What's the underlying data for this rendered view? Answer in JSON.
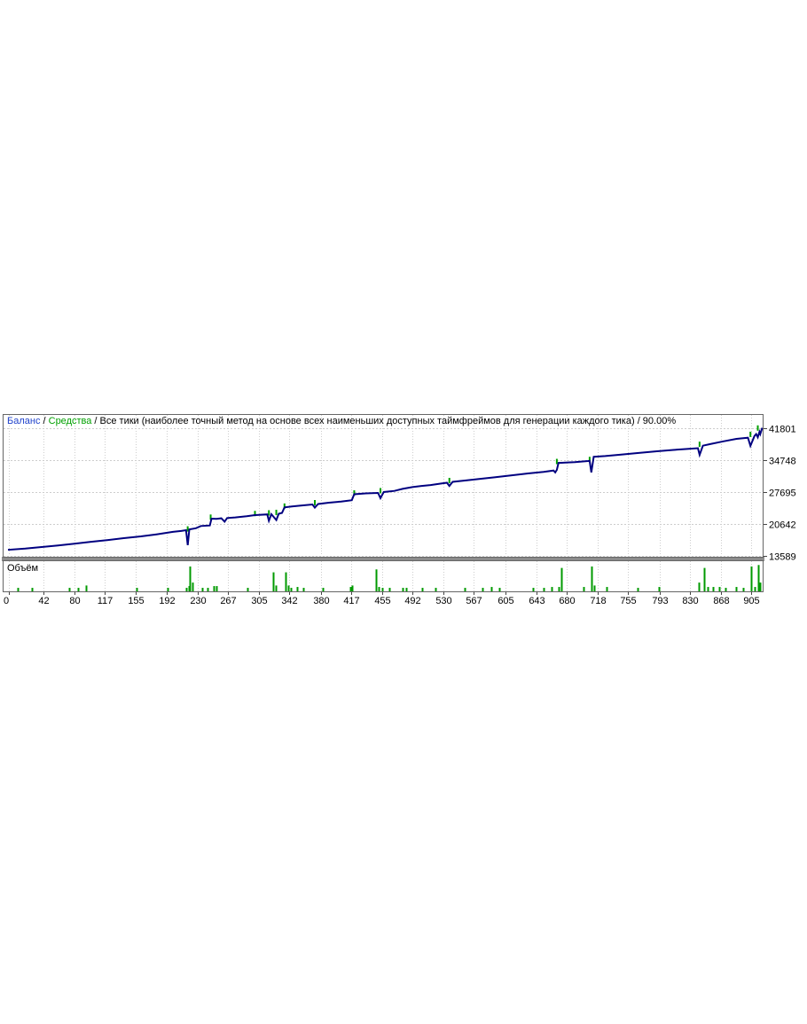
{
  "header": {
    "balance_label": "Баланс",
    "sep1": " / ",
    "equity_label": "Средства",
    "sep2": " / ",
    "rest": "Все тики (наиболее точный метод на основе всех наименьших доступных таймфреймов для генерации каждого тика) / 90.00%"
  },
  "volume_pane": {
    "label": "Объём"
  },
  "colors": {
    "balance_line": "#000080",
    "equity_mark": "#00a000",
    "volume_bar": "#009a00",
    "header_balance": "#2244cc",
    "header_equity": "#00a000",
    "grid": "#cdcdcd",
    "border": "#666666",
    "separator": "#8c8c8c",
    "background": "#ffffff",
    "text": "#000000"
  },
  "chart_data": {
    "type": "line",
    "title": "Баланс / Средства / Все тики (наиболее точный метод на основе всех наименьших доступных таймфреймов для генерации каждого тика) / 90.00%",
    "modeling_quality": "90.00%",
    "xlabel": "",
    "ylabel": "",
    "y_axis_side": "right",
    "grid": true,
    "legend_position": "top-left-inline",
    "x_range": [
      0,
      920
    ],
    "y_range": [
      13589,
      41801
    ],
    "y_ticks": [
      41801,
      34748,
      27695,
      20642,
      13589
    ],
    "x_ticks": [
      0,
      42,
      80,
      117,
      155,
      192,
      230,
      267,
      305,
      342,
      380,
      417,
      455,
      492,
      530,
      567,
      605,
      643,
      680,
      718,
      755,
      793,
      830,
      868,
      905
    ],
    "series": [
      {
        "name": "Баланс",
        "color": "#000080",
        "points": [
          [
            0,
            14950
          ],
          [
            20,
            15200
          ],
          [
            40,
            15550
          ],
          [
            60,
            15900
          ],
          [
            80,
            16300
          ],
          [
            100,
            16700
          ],
          [
            121,
            17100
          ],
          [
            140,
            17500
          ],
          [
            161,
            17900
          ],
          [
            180,
            18350
          ],
          [
            200,
            18900
          ],
          [
            210,
            19100
          ],
          [
            216,
            19270
          ],
          [
            218,
            15950
          ],
          [
            220,
            19450
          ],
          [
            228,
            19700
          ],
          [
            234,
            20200
          ],
          [
            245,
            20300
          ],
          [
            247,
            21820
          ],
          [
            253,
            21750
          ],
          [
            259,
            21900
          ],
          [
            263,
            21150
          ],
          [
            266,
            21950
          ],
          [
            276,
            22100
          ],
          [
            290,
            22350
          ],
          [
            300,
            22600
          ],
          [
            315,
            22750
          ],
          [
            317,
            21350
          ],
          [
            320,
            22800
          ],
          [
            326,
            21500
          ],
          [
            329,
            22900
          ],
          [
            333,
            23100
          ],
          [
            336,
            24300
          ],
          [
            345,
            24500
          ],
          [
            356,
            24700
          ],
          [
            370,
            24950
          ],
          [
            373,
            24250
          ],
          [
            377,
            25050
          ],
          [
            390,
            25350
          ],
          [
            405,
            25600
          ],
          [
            418,
            25900
          ],
          [
            421,
            27200
          ],
          [
            435,
            27400
          ],
          [
            450,
            27500
          ],
          [
            453,
            26350
          ],
          [
            457,
            27700
          ],
          [
            470,
            27950
          ],
          [
            480,
            28400
          ],
          [
            492,
            28800
          ],
          [
            503,
            29050
          ],
          [
            514,
            29250
          ],
          [
            526,
            29550
          ],
          [
            534,
            29750
          ],
          [
            537,
            29050
          ],
          [
            541,
            29950
          ],
          [
            556,
            30250
          ],
          [
            572,
            30550
          ],
          [
            592,
            30950
          ],
          [
            612,
            31350
          ],
          [
            633,
            31800
          ],
          [
            652,
            32150
          ],
          [
            664,
            32450
          ],
          [
            666,
            32050
          ],
          [
            668,
            32600
          ],
          [
            670,
            34150
          ],
          [
            690,
            34300
          ],
          [
            706,
            34550
          ],
          [
            708,
            34600
          ],
          [
            710,
            32050
          ],
          [
            713,
            35500
          ],
          [
            727,
            35650
          ],
          [
            745,
            35950
          ],
          [
            765,
            36300
          ],
          [
            790,
            36700
          ],
          [
            810,
            37000
          ],
          [
            825,
            37200
          ],
          [
            840,
            37400
          ],
          [
            842,
            35900
          ],
          [
            846,
            37950
          ],
          [
            855,
            38300
          ],
          [
            871,
            38900
          ],
          [
            887,
            39450
          ],
          [
            901,
            39700
          ],
          [
            904,
            37900
          ],
          [
            909,
            40100
          ],
          [
            911,
            40500
          ],
          [
            913,
            39800
          ],
          [
            915,
            41000
          ],
          [
            916,
            40500
          ],
          [
            918,
            41700
          ]
        ]
      }
    ],
    "equity_marks": {
      "name": "Средства",
      "color": "#00a000",
      "points": [
        [
          218,
          19350
        ],
        [
          246,
          21950
        ],
        [
          300,
          22750
        ],
        [
          317,
          22900
        ],
        [
          326,
          23000
        ],
        [
          336,
          24400
        ],
        [
          373,
          25150
        ],
        [
          421,
          27300
        ],
        [
          453,
          27800
        ],
        [
          537,
          30050
        ],
        [
          668,
          34250
        ],
        [
          708,
          34700
        ],
        [
          842,
          38050
        ],
        [
          904,
          40250
        ],
        [
          913,
          41650
        ]
      ]
    },
    "volume": {
      "name": "Объём",
      "color": "#009a00",
      "max_height_fraction": 1,
      "bars": [
        [
          11,
          0.12
        ],
        [
          28,
          0.12
        ],
        [
          74,
          0.12
        ],
        [
          84,
          0.12
        ],
        [
          94,
          0.2
        ],
        [
          156,
          0.12
        ],
        [
          193,
          0.12
        ],
        [
          216,
          0.12
        ],
        [
          219,
          0.18
        ],
        [
          221,
          0.85
        ],
        [
          224,
          0.3
        ],
        [
          236,
          0.12
        ],
        [
          242,
          0.12
        ],
        [
          250,
          0.18
        ],
        [
          253,
          0.18
        ],
        [
          291,
          0.12
        ],
        [
          322,
          0.65
        ],
        [
          325,
          0.2
        ],
        [
          337,
          0.65
        ],
        [
          340,
          0.2
        ],
        [
          344,
          0.12
        ],
        [
          351,
          0.15
        ],
        [
          359,
          0.12
        ],
        [
          383,
          0.12
        ],
        [
          416,
          0.15
        ],
        [
          418,
          0.2
        ],
        [
          448,
          0.75
        ],
        [
          451,
          0.15
        ],
        [
          455,
          0.12
        ],
        [
          464,
          0.12
        ],
        [
          480,
          0.12
        ],
        [
          484,
          0.12
        ],
        [
          504,
          0.12
        ],
        [
          520,
          0.12
        ],
        [
          556,
          0.12
        ],
        [
          577,
          0.12
        ],
        [
          588,
          0.15
        ],
        [
          598,
          0.12
        ],
        [
          639,
          0.12
        ],
        [
          652,
          0.12
        ],
        [
          662,
          0.15
        ],
        [
          670,
          0.15
        ],
        [
          673,
          0.8
        ],
        [
          701,
          0.15
        ],
        [
          710,
          0.85
        ],
        [
          713,
          0.2
        ],
        [
          729,
          0.15
        ],
        [
          766,
          0.12
        ],
        [
          792,
          0.15
        ],
        [
          841,
          0.3
        ],
        [
          848,
          0.8
        ],
        [
          852,
          0.15
        ],
        [
          858,
          0.15
        ],
        [
          866,
          0.15
        ],
        [
          874,
          0.12
        ],
        [
          887,
          0.15
        ],
        [
          895,
          0.12
        ],
        [
          905,
          0.85
        ],
        [
          909,
          0.15
        ],
        [
          914,
          0.9
        ],
        [
          916,
          0.3
        ]
      ]
    }
  }
}
